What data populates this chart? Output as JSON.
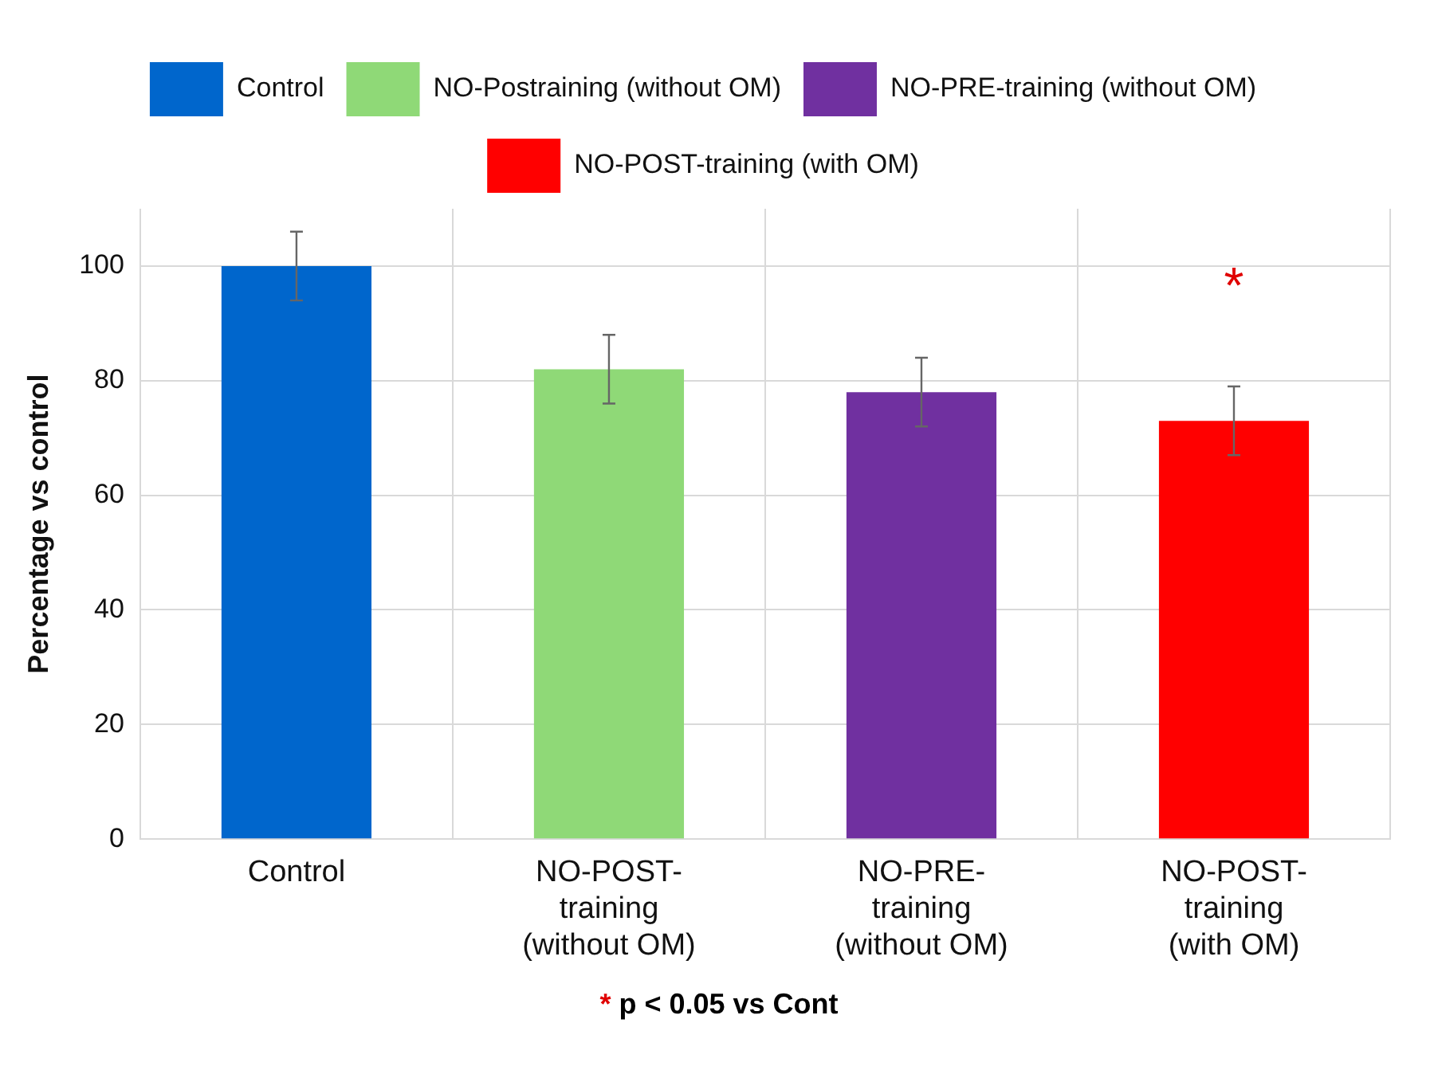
{
  "chart_data": {
    "type": "bar",
    "ylabel": "Percentage vs control",
    "categories": [
      "Control",
      "NO-POST-training (without OM)",
      "NO-PRE-training (without OM)",
      "NO-POST-training (with OM)"
    ],
    "series": [
      {
        "name": "Control",
        "color": "#0066cc",
        "values": [
          100,
          null,
          null,
          null
        ],
        "errors": [
          6,
          null,
          null,
          null
        ]
      },
      {
        "name": "NO-Postraining (without OM)",
        "color": "#8fd977",
        "values": [
          null,
          82,
          null,
          null
        ],
        "errors": [
          null,
          6,
          null,
          null
        ]
      },
      {
        "name": "NO-PRE-training (without OM)",
        "color": "#7030a0",
        "values": [
          null,
          null,
          78,
          null
        ],
        "errors": [
          null,
          null,
          6,
          null
        ]
      },
      {
        "name": "NO-POST-training (with OM)",
        "color": "#ff0000",
        "values": [
          null,
          null,
          null,
          73
        ],
        "errors": [
          null,
          null,
          null,
          6
        ]
      }
    ],
    "ylim": [
      0,
      110
    ],
    "yticks": [
      0,
      20,
      40,
      60,
      80,
      100
    ],
    "grid": true,
    "legend": "top",
    "annotations": [
      "*",
      "* p < 0.05 vs Cont"
    ]
  }
}
